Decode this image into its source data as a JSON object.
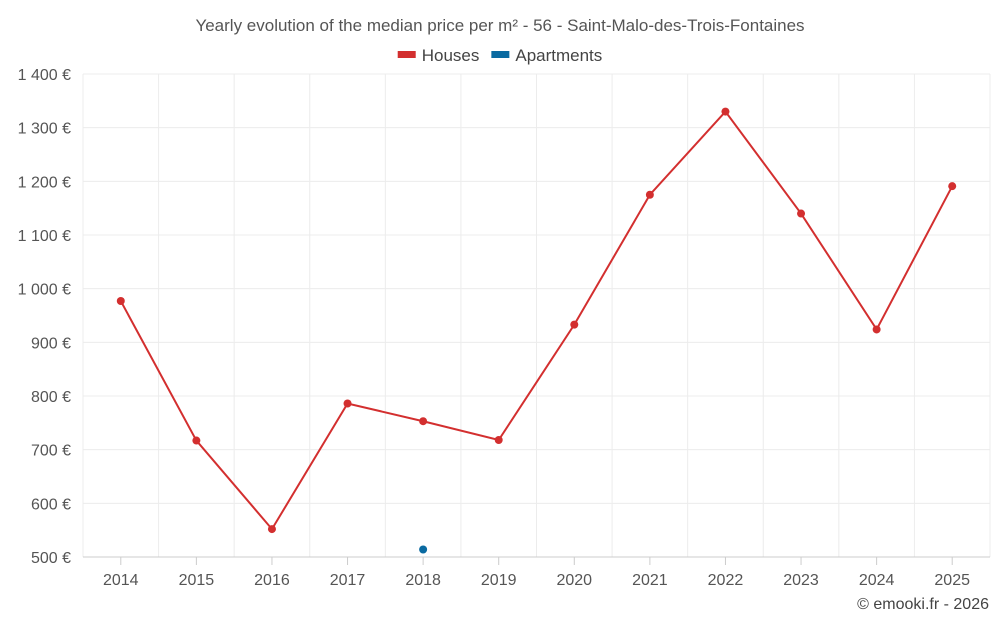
{
  "chart_data": {
    "type": "line",
    "title": "Yearly evolution of the median price per m² - 56 - Saint-Malo-des-Trois-Fontaines",
    "categories": [
      "2014",
      "2015",
      "2016",
      "2017",
      "2018",
      "2019",
      "2020",
      "2021",
      "2022",
      "2023",
      "2024",
      "2025"
    ],
    "y_ticks": [
      500,
      600,
      700,
      800,
      900,
      1000,
      1100,
      1200,
      1300,
      1400
    ],
    "y_tick_labels": [
      "500 €",
      "600 €",
      "700 €",
      "800 €",
      "900 €",
      "1 000 €",
      "1 100 €",
      "1 200 €",
      "1 300 €",
      "1 400 €"
    ],
    "ylim": [
      500,
      1400
    ],
    "grid": true,
    "legend_position": "top-center",
    "series": [
      {
        "name": "Houses",
        "color": "#d32f2f",
        "values": [
          977,
          717,
          552,
          786,
          753,
          718,
          933,
          1175,
          1330,
          1140,
          924,
          1191
        ]
      },
      {
        "name": "Apartments",
        "color": "#0a6aa1",
        "values": [
          null,
          null,
          null,
          null,
          514,
          null,
          null,
          null,
          null,
          null,
          null,
          null
        ]
      }
    ],
    "credit": "© emooki.fr - 2026"
  }
}
